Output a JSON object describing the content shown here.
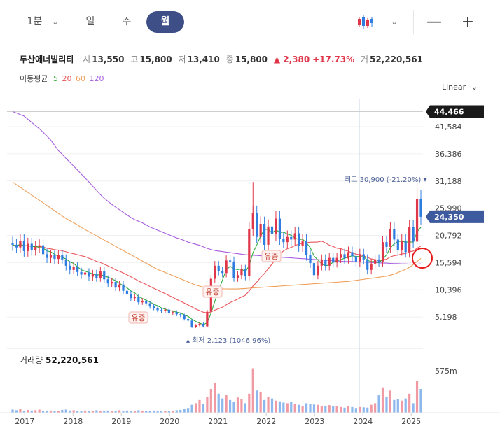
{
  "toolbar": {
    "interval_1min": "1분",
    "day": "일",
    "week": "주",
    "month": "월",
    "chart_type_icon": "candlestick-icon",
    "zoom_out": "—",
    "zoom_in": "+"
  },
  "stock": {
    "name": "두산에너빌리티",
    "open_label": "시",
    "open": "13,550",
    "high_label": "고",
    "high": "15,800",
    "low_label": "저",
    "low": "13,410",
    "close_label": "종",
    "close": "15,800",
    "change": "▲ 2,380",
    "change_pct": "+17.73%",
    "volume_label": "거",
    "volume": "52,220,561"
  },
  "moving_average": {
    "label": "이동평균",
    "periods": [
      "5",
      "20",
      "60",
      "120"
    ],
    "colors": [
      "#2eaa3c",
      "#e9555a",
      "#f0a05a",
      "#a75ee0"
    ]
  },
  "scale_mode": "Linear",
  "colors": {
    "up": "#e0364a",
    "down": "#2f7de0",
    "accent": "#3d4f86"
  },
  "chart_data": {
    "type": "candlestick",
    "interval": "monthly",
    "y_ticks": [
      "41,584",
      "36,386",
      "31,188",
      "25,990",
      "20,792",
      "15,594",
      "10,396",
      "5,198"
    ],
    "y_range": [
      0,
      46000
    ],
    "max_label": "44,466",
    "current_label": "24,350",
    "high_annotation": "최고 30,900 (-21.20%)",
    "low_annotation": "최저 2,123 (1046.96%)",
    "event_labels": [
      "유증",
      "유증",
      "유증"
    ],
    "x_labels": [
      "2017",
      "2018",
      "2019",
      "2020",
      "2021",
      "2022",
      "2023",
      "2024",
      "2025"
    ],
    "volume_label": "거래량",
    "volume_value": "52,220,561",
    "volume_tick": "575m",
    "year_start": 2016.75,
    "year_end": 2025.2,
    "monthly_close": [
      19000,
      18500,
      19800,
      17800,
      19200,
      18000,
      18600,
      18900,
      17200,
      16500,
      17000,
      16300,
      17000,
      16200,
      15000,
      14200,
      14800,
      13800,
      13300,
      13700,
      12900,
      13400,
      12700,
      13900,
      12400,
      11600,
      11900,
      10800,
      11400,
      10200,
      9600,
      8800,
      9000,
      8000,
      8300,
      7800,
      7200,
      6900,
      6500,
      6300,
      6600,
      5900,
      6100,
      5700,
      5500,
      4800,
      4500,
      3300,
      3600,
      3900,
      3400,
      6200,
      12500,
      15000,
      14000,
      13600,
      16000,
      15800,
      12700,
      13200,
      14300,
      13000,
      22000,
      25000,
      20500,
      23000,
      19000,
      22500,
      21000,
      24000,
      20200,
      19500,
      20500,
      20000,
      21200,
      18800,
      19800,
      17000,
      15500,
      13200,
      15000,
      16200,
      15000,
      16500,
      15600,
      16500,
      17200,
      16400,
      17600,
      16800,
      15800,
      17200,
      16200,
      14200,
      15400,
      16200,
      15800,
      19500,
      18600,
      22000,
      20000,
      18000,
      19800,
      17600,
      22400,
      19600,
      27800,
      24350
    ],
    "ma120": [
      44466,
      44200,
      43900,
      43600,
      43000,
      42400,
      41800,
      41200,
      40500,
      39800,
      39000,
      38000,
      37000,
      36300,
      35500,
      34800,
      34000,
      33300,
      32500,
      31800,
      31000,
      30200,
      29400,
      28600,
      27900,
      27300,
      26700,
      26200,
      25700,
      25200,
      24700,
      24200,
      23800,
      23500,
      23200,
      22800,
      22400,
      22100,
      21800,
      21500,
      21200,
      20900,
      20600,
      20300,
      20100,
      19800,
      19500,
      19300,
      19100,
      18900,
      18600,
      18300,
      18100,
      17900,
      17800,
      17700,
      17600,
      17500,
      17400,
      17300,
      17200,
      17100,
      17050,
      17000,
      16950,
      16900,
      16850,
      16800,
      16750,
      16700,
      16650,
      16600,
      16550,
      16500,
      16450,
      16400,
      16350,
      16300,
      16250,
      16200,
      16150,
      16100,
      16050,
      16000,
      15950,
      15900,
      15850,
      15800,
      15800,
      15800,
      15750,
      15700,
      15700,
      15650,
      15600,
      15600,
      15550,
      15500,
      15500,
      15450,
      15400,
      15400,
      15350,
      15350,
      15300,
      15300,
      15300,
      15350
    ],
    "ma60": [
      31000,
      30500,
      30000,
      29500,
      29000,
      28500,
      28000,
      27500,
      27000,
      26500,
      26000,
      25500,
      25000,
      24500,
      24000,
      23600,
      23200,
      22800,
      22300,
      21900,
      21500,
      21100,
      20700,
      20300,
      19900,
      19500,
      19100,
      18700,
      18300,
      17900,
      17500,
      17100,
      16700,
      16300,
      15900,
      15500,
      15100,
      14700,
      14300,
      14000,
      13700,
      13400,
      13100,
      12800,
      12500,
      12200,
      11900,
      11600,
      11300,
      11100,
      10900,
      10800,
      10700,
      10650,
      10600,
      10580,
      10560,
      10550,
      10550,
      10550,
      10600,
      10650,
      10700,
      10750,
      10800,
      10850,
      10900,
      10950,
      11000,
      11050,
      11100,
      11150,
      11200,
      11250,
      11300,
      11350,
      11400,
      11450,
      11500,
      11550,
      11600,
      11650,
      11700,
      11750,
      11800,
      11850,
      11900,
      11950,
      12000,
      12100,
      12200,
      12300,
      12400,
      12500,
      12600,
      12700,
      12800,
      12900,
      13000,
      13200,
      13400,
      13700,
      14000,
      14300,
      14700,
      15200,
      15800,
      16400
    ],
    "volume": [
      10,
      8,
      12,
      6,
      9,
      7,
      8,
      10,
      5,
      6,
      7,
      5,
      6,
      9,
      10,
      7,
      8,
      6,
      5,
      7,
      6,
      5,
      8,
      6,
      6,
      7,
      5,
      6,
      8,
      5,
      7,
      6,
      5,
      8,
      6,
      5,
      6,
      7,
      5,
      6,
      6,
      5,
      7,
      8,
      9,
      12,
      15,
      25,
      30,
      40,
      28,
      50,
      75,
      95,
      60,
      45,
      55,
      40,
      35,
      48,
      42,
      30,
      60,
      140,
      70,
      65,
      40,
      50,
      45,
      38,
      36,
      32,
      30,
      35,
      28,
      25,
      22,
      30,
      28,
      26,
      25,
      22,
      20,
      24,
      22,
      20,
      18,
      16,
      20,
      18,
      15,
      18,
      17,
      16,
      25,
      30,
      55,
      80,
      50,
      70,
      40,
      42,
      38,
      45,
      60,
      30,
      100,
      75
    ]
  }
}
